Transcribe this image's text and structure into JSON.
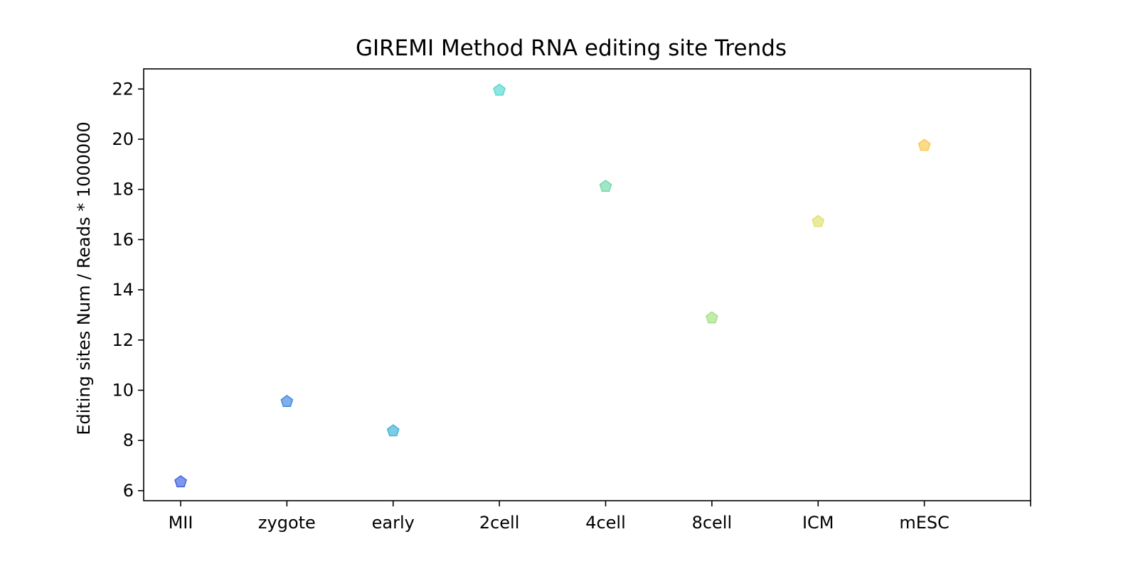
{
  "chart_data": {
    "type": "scatter",
    "title": "GIREMI Method RNA editing site Trends",
    "xlabel": "",
    "ylabel": "Editing sites Num / Reads * 1000000",
    "categories": [
      "MII",
      "zygote",
      "early",
      "2cell",
      "4cell",
      "8cell",
      "ICM",
      "mESC"
    ],
    "values": [
      6.35,
      9.55,
      8.38,
      21.95,
      18.12,
      12.88,
      16.72,
      19.75
    ],
    "yticks": [
      6,
      8,
      10,
      12,
      14,
      16,
      18,
      20,
      22
    ],
    "ylim": [
      5.6,
      22.8
    ],
    "marker": "pentagon",
    "grid": false,
    "colors": [
      "#3b5fe0",
      "#3a86dd",
      "#38b1d6",
      "#52d8cf",
      "#6fd9a8",
      "#a2e07e",
      "#dfe06a",
      "#f8c74a"
    ]
  }
}
